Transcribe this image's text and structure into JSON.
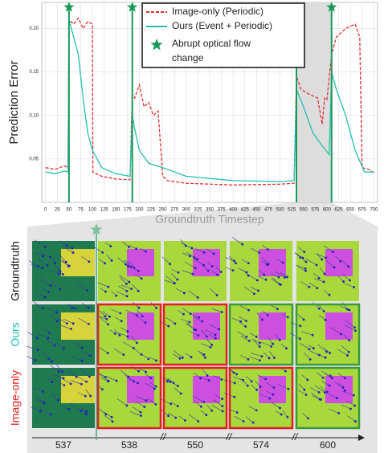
{
  "chart_data": {
    "type": "line",
    "y_label": "Prediction Error",
    "x_label": "Groundtruth Timestep",
    "xlim": [
      -8,
      708
    ],
    "ylim": [
      0,
      0.23
    ],
    "xticks": [
      0,
      25,
      50,
      75,
      100,
      125,
      150,
      175,
      200,
      225,
      250,
      275,
      300,
      325,
      350,
      375,
      400,
      425,
      450,
      475,
      500,
      525,
      550,
      575,
      600,
      625,
      650,
      675,
      700
    ],
    "yticks": [
      0.05,
      {
        "value": 0.1,
        "label": "0.10"
      },
      0.15,
      {
        "value": 0.2,
        "label": "0.20"
      }
    ],
    "grid": true,
    "highlight_range": [
      535,
      610
    ],
    "series": [
      {
        "name": "Image-only (Periodic)",
        "color": "#e03030",
        "x": [
          0,
          20,
          40,
          48,
          50,
          60,
          70,
          80,
          90,
          100,
          101,
          120,
          150,
          180,
          185,
          190,
          200,
          210,
          220,
          230,
          240,
          250,
          260,
          300,
          400,
          500,
          530,
          535,
          545,
          560,
          580,
          590,
          595,
          600,
          610,
          620,
          640,
          660,
          670,
          675,
          690,
          700
        ],
        "values": [
          0.04,
          0.038,
          0.042,
          0.04,
          0.21,
          0.205,
          0.212,
          0.2,
          0.208,
          0.205,
          0.035,
          0.03,
          0.027,
          0.026,
          0.125,
          0.12,
          0.135,
          0.11,
          0.115,
          0.1,
          0.105,
          0.03,
          0.025,
          0.022,
          0.02,
          0.021,
          0.022,
          0.145,
          0.13,
          0.125,
          0.12,
          0.09,
          0.12,
          0.118,
          0.17,
          0.19,
          0.2,
          0.205,
          0.19,
          0.04,
          0.038,
          0.034
        ]
      },
      {
        "name": "Ours (Event + Periodic)",
        "color": "#20c0b0",
        "x": [
          0,
          20,
          40,
          48,
          50,
          60,
          70,
          80,
          90,
          100,
          120,
          150,
          180,
          185,
          190,
          200,
          220,
          250,
          300,
          400,
          500,
          530,
          535,
          550,
          570,
          590,
          605,
          610,
          620,
          640,
          660,
          680,
          700
        ],
        "values": [
          0.035,
          0.033,
          0.036,
          0.035,
          0.21,
          0.19,
          0.17,
          0.12,
          0.08,
          0.06,
          0.04,
          0.033,
          0.03,
          0.1,
          0.085,
          0.06,
          0.045,
          0.04,
          0.03,
          0.025,
          0.024,
          0.025,
          0.13,
          0.11,
          0.08,
          0.065,
          0.055,
          0.15,
          0.13,
          0.1,
          0.06,
          0.035,
          0.035
        ]
      }
    ],
    "event_label": "Abrupt optical flow change",
    "event_color": "#1a9a5a",
    "events": [
      50,
      185,
      535,
      610
    ]
  },
  "grid_figure": {
    "rows": [
      "Groundtruth",
      "Ours",
      "Image-only"
    ],
    "row_colors": [
      "#111111",
      "#20c0c0",
      "#e02020"
    ],
    "columns": [
      "537",
      "538",
      "550",
      "574",
      "600"
    ]
  }
}
